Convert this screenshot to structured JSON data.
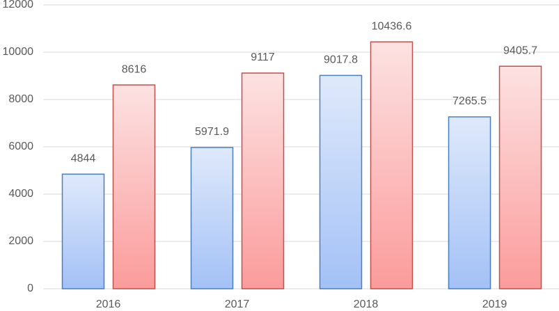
{
  "chart_data": {
    "type": "bar",
    "categories": [
      "2016",
      "2017",
      "2018",
      "2019"
    ],
    "series": [
      {
        "color": "#4a7ebf",
        "gradient": [
          "#dfe9fb",
          "#a3c1f6"
        ],
        "values": [
          4844,
          5971.9,
          9017.8,
          7265.5
        ]
      },
      {
        "color": "#c0504d",
        "gradient": [
          "#fde2e2",
          "#fb9b9b"
        ],
        "values": [
          8616,
          9117,
          10436.6,
          9405.7
        ]
      }
    ],
    "ylim": [
      0,
      12000
    ],
    "yticks": [
      0,
      2000,
      4000,
      6000,
      8000,
      10000,
      12000
    ],
    "grid": true
  }
}
